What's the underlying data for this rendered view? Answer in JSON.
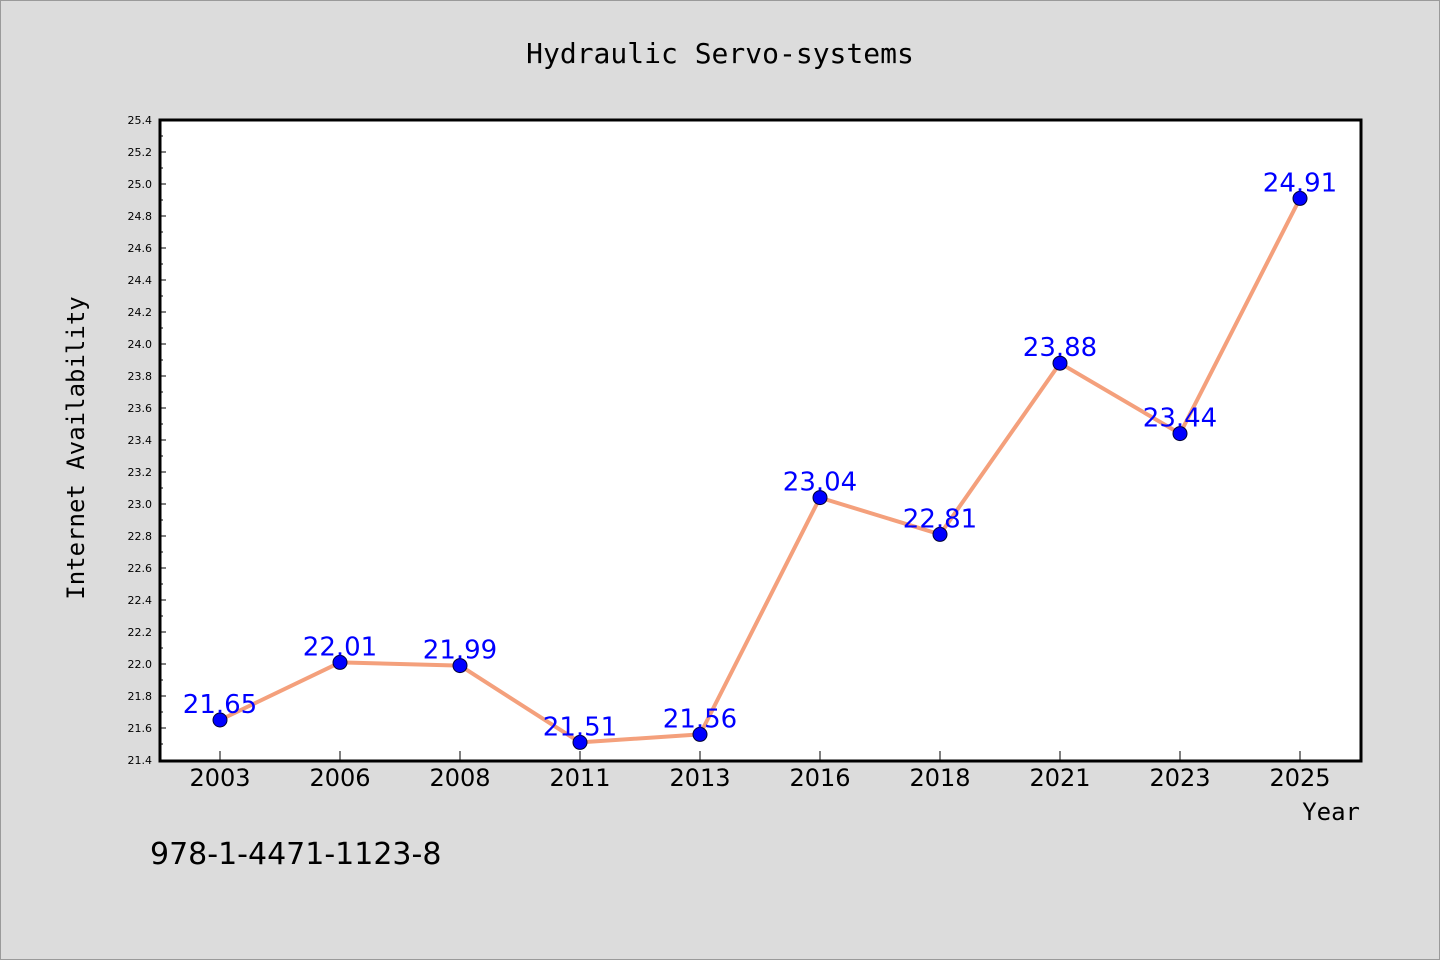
{
  "chart_data": {
    "type": "line",
    "title": "Hydraulic Servo-systems",
    "xlabel": "Year",
    "ylabel": "Internet Availability",
    "categories": [
      "2003",
      "2006",
      "2008",
      "2011",
      "2013",
      "2016",
      "2018",
      "2021",
      "2023",
      "2025"
    ],
    "series": [
      {
        "values": [
          21.65,
          22.01,
          21.99,
          21.51,
          21.56,
          23.04,
          22.81,
          23.88,
          23.44,
          24.91
        ],
        "data_labels": [
          "21.65",
          "22.01",
          "21.99",
          "21.51",
          "21.56",
          "23.04",
          "22.81",
          "23.88",
          "23.44",
          "24.91"
        ]
      }
    ],
    "ylim": [
      21.4,
      25.4
    ],
    "yticks": [
      "21.4",
      "21.6",
      "21.8",
      "22.0",
      "22.2",
      "22.4",
      "22.6",
      "22.8",
      "23.0",
      "23.2",
      "23.4",
      "23.6",
      "23.8",
      "24.0",
      "24.2",
      "24.4",
      "24.6",
      "24.8",
      "25.0",
      "25.2",
      "25.4"
    ],
    "grid": false,
    "legend": "none",
    "colors": {
      "line": "#f4a07c",
      "marker": "#0000ff",
      "label": "#0000ff",
      "background": "#dcdcdc",
      "plot_background": "#ffffff"
    }
  },
  "footer": {
    "isbn": "978-1-4471-1123-8"
  }
}
